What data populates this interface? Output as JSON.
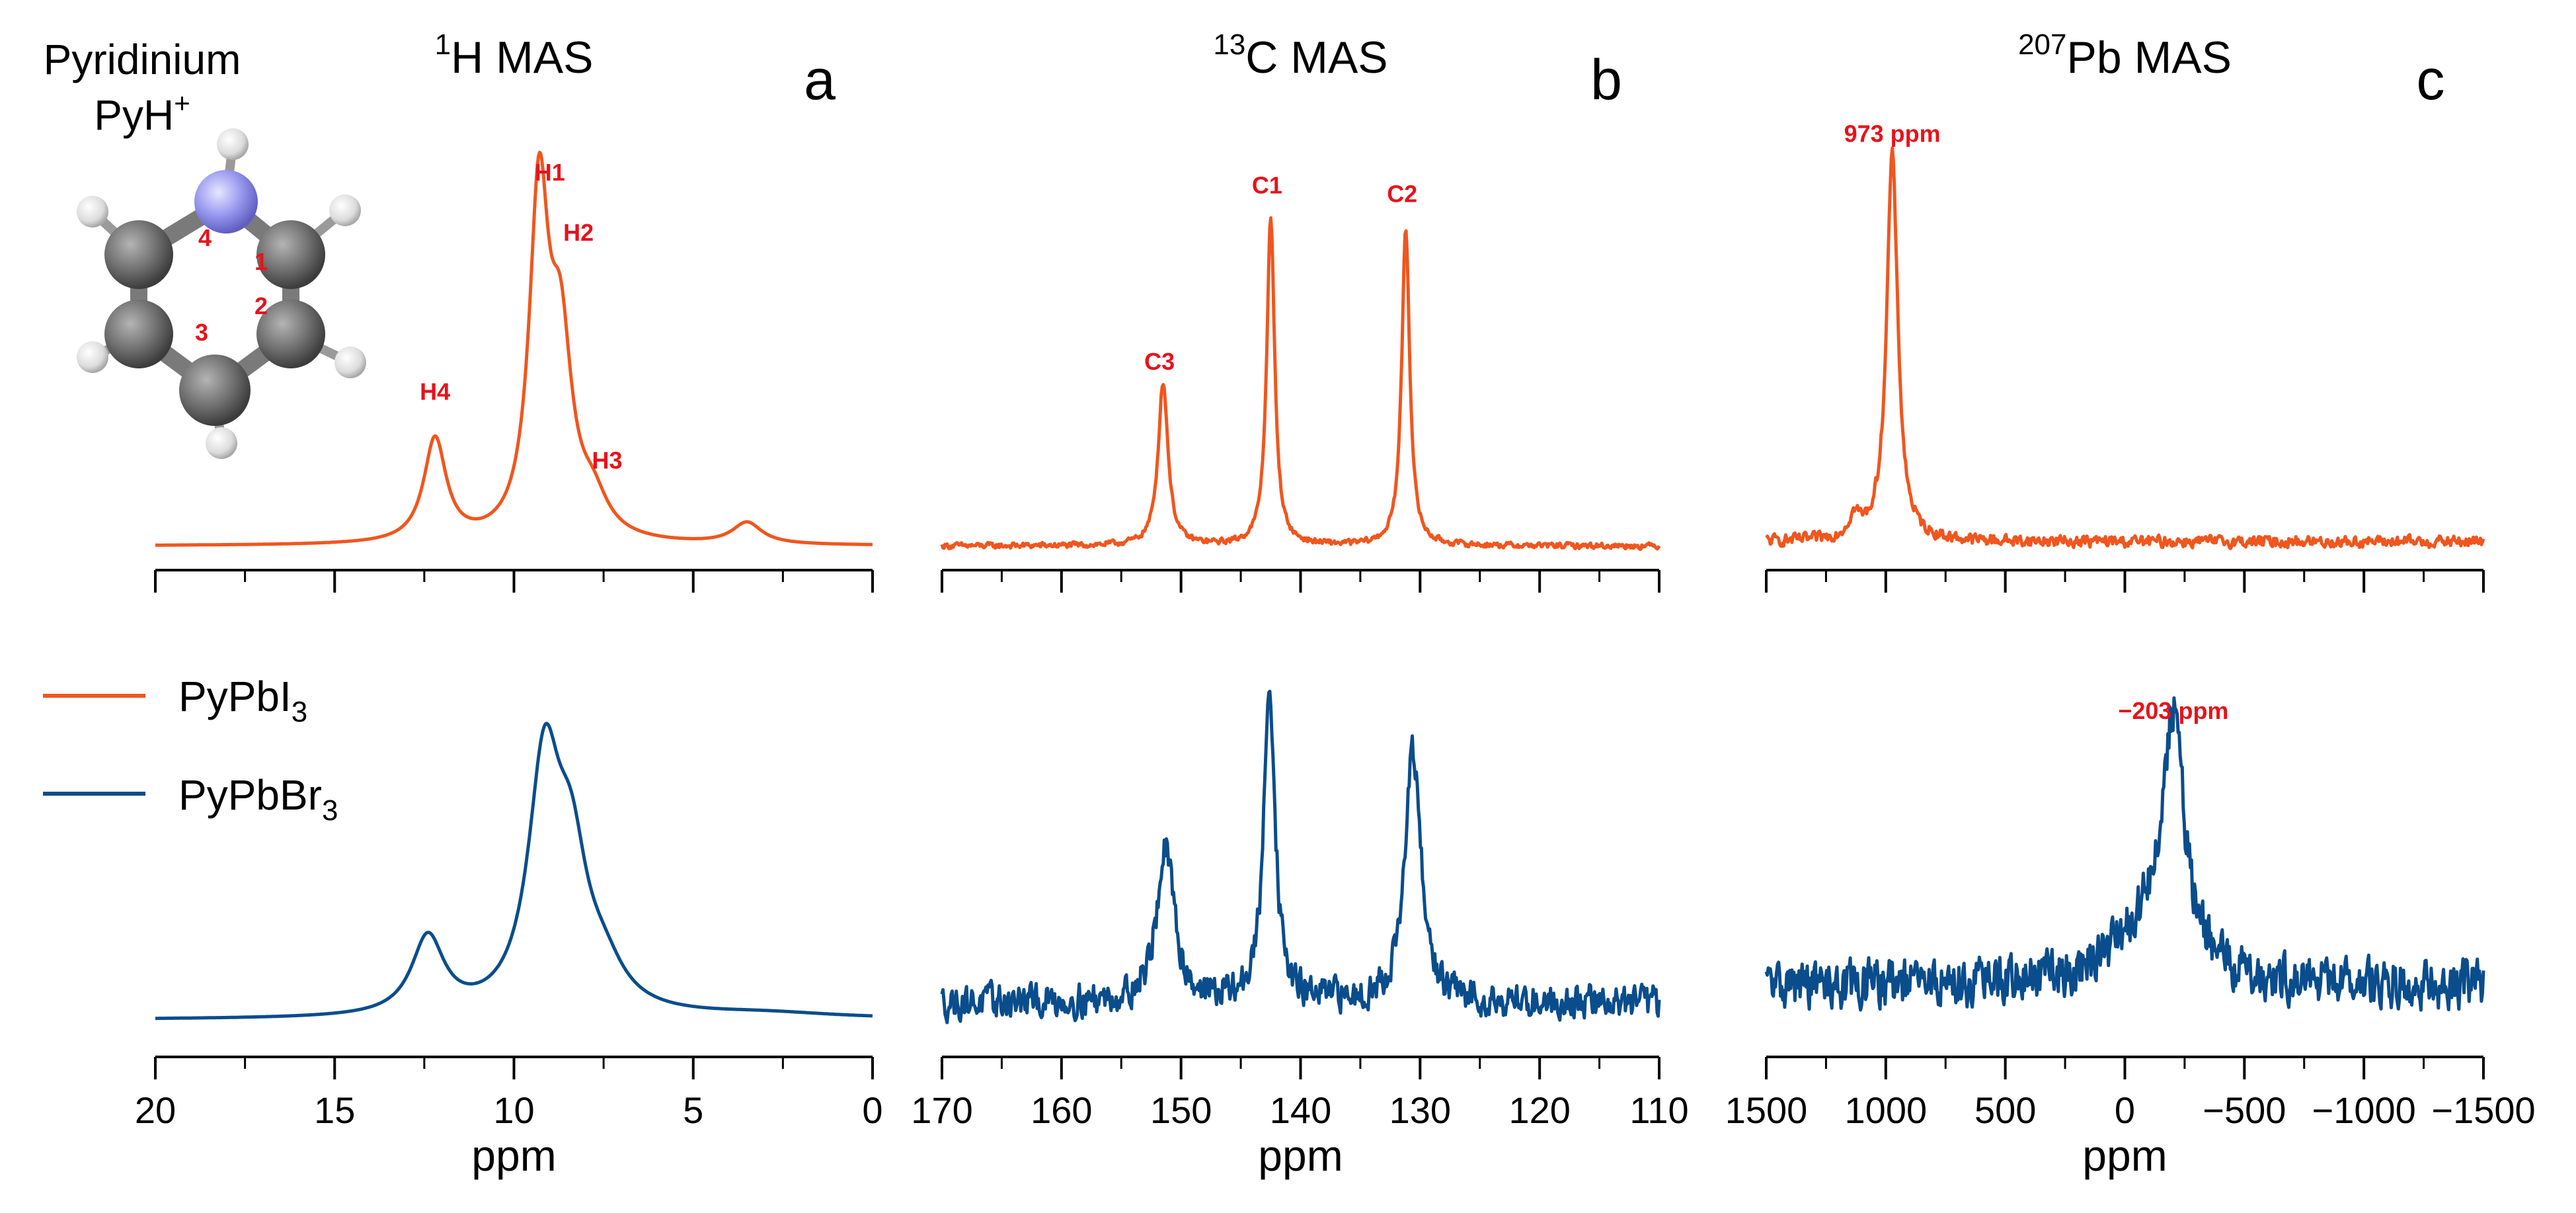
{
  "colors": {
    "PyPbI3": "#f0561e",
    "PyPbBr3": "#0a4d8c",
    "peak_labels": "#e8121a",
    "axis": "#000000"
  },
  "molecule": {
    "title_line1": "Pyridinium",
    "title_line2_base": "PyH",
    "title_line2_sup": "+",
    "atom_numbers": [
      "4",
      "1",
      "2",
      "3"
    ]
  },
  "legend": [
    {
      "base": "PyPbI",
      "sub": "3",
      "series": "PyPbI3"
    },
    {
      "base": "PyPbBr",
      "sub": "3",
      "series": "PyPbBr3"
    }
  ],
  "chart_data": [
    {
      "type": "line",
      "panel": "a",
      "title_sup": "1",
      "title_rest": "H MAS",
      "xlabel": "ppm",
      "xlim": [
        20,
        0
      ],
      "xticks": [
        20,
        15,
        10,
        5,
        0
      ],
      "xtick_labels": [
        "20",
        "15",
        "10",
        "5",
        "0"
      ],
      "ylim": [
        0,
        1
      ],
      "series": [
        {
          "name": "PyPbI3",
          "baseline": 0.03,
          "peaks": [
            [
              9.3,
              0.78,
              0.33
            ],
            [
              8.7,
              0.42,
              0.38
            ],
            [
              12.2,
              0.24,
              0.38
            ],
            [
              7.8,
              0.08,
              0.5
            ],
            [
              3.5,
              0.05,
              0.5
            ]
          ]
        },
        {
          "name": "PyPbBr3",
          "baseline": 0.02,
          "peaks": [
            [
              9.15,
              0.56,
              0.55
            ],
            [
              8.4,
              0.3,
              0.55
            ],
            [
              12.4,
              0.18,
              0.55
            ],
            [
              7.5,
              0.08,
              0.7
            ],
            [
              3.0,
              0.012,
              2.5
            ]
          ]
        }
      ],
      "peak_labels": [
        {
          "text": "H1",
          "x": 9.0,
          "y": 0.88
        },
        {
          "text": "H2",
          "x": 8.2,
          "y": 0.74
        },
        {
          "text": "H4",
          "x": 12.2,
          "y": 0.37
        },
        {
          "text": "H3",
          "x": 7.4,
          "y": 0.21
        }
      ]
    },
    {
      "type": "line",
      "panel": "b",
      "title_sup": "13",
      "title_rest": "C MAS",
      "xlabel": "ppm",
      "xlim": [
        170,
        110
      ],
      "xticks": [
        170,
        160,
        150,
        140,
        130,
        120,
        110
      ],
      "xtick_labels": [
        "170",
        "160",
        "150",
        "140",
        "130",
        "120",
        "110"
      ],
      "ylim": [
        0,
        1
      ],
      "series": [
        {
          "name": "PyPbI3",
          "baseline": 0.03,
          "noise": 0.006,
          "peaks": [
            [
              151.5,
              0.38,
              0.5
            ],
            [
              142.5,
              0.76,
              0.4
            ],
            [
              131.2,
              0.74,
              0.4
            ]
          ]
        },
        {
          "name": "PyPbBr3",
          "baseline": 0.06,
          "noise": 0.035,
          "peaks": [
            [
              151.3,
              0.35,
              0.9
            ],
            [
              142.6,
              0.75,
              0.55
            ],
            [
              130.6,
              0.58,
              0.8
            ]
          ]
        }
      ],
      "peak_labels": [
        {
          "text": "C3",
          "x": 151.8,
          "y": 0.44
        },
        {
          "text": "C1",
          "x": 142.8,
          "y": 0.85
        },
        {
          "text": "C2",
          "x": 131.5,
          "y": 0.83
        }
      ]
    },
    {
      "type": "line",
      "panel": "c",
      "title_sup": "207",
      "title_rest": "Pb MAS",
      "xlabel": "ppm",
      "xlim": [
        1500,
        -1500
      ],
      "xticks": [
        1500,
        1000,
        500,
        0,
        -500,
        -1000,
        -1500
      ],
      "xtick_labels": [
        "1500",
        "1000",
        "500",
        "0",
        "−500",
        "−1000",
        "−1500"
      ],
      "ylim": [
        0,
        1
      ],
      "series": [
        {
          "name": "PyPbI3",
          "baseline": 0.04,
          "noise": 0.012,
          "peaks": [
            [
              973,
              0.9,
              28
            ],
            [
              1130,
              0.05,
              30
            ]
          ]
        },
        {
          "name": "PyPbBr3",
          "baseline": 0.1,
          "noise": 0.05,
          "peaks": [
            [
              -203,
              0.55,
              55
            ],
            [
              -100,
              0.12,
              180
            ]
          ]
        }
      ],
      "peak_labels": [
        {
          "text": "973 ppm",
          "x": 973,
          "y": 0.97,
          "series": "PyPbI3"
        },
        {
          "text": "−203 ppm",
          "x": -203,
          "y": 0.72,
          "series": "PyPbBr3"
        }
      ]
    }
  ]
}
